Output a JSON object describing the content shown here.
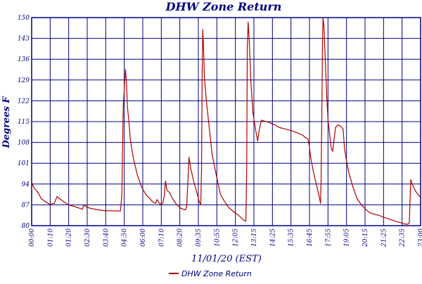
{
  "colors": {
    "title": "#000080",
    "axis_text": "#000080",
    "grid": "#000080",
    "series": "#b00000",
    "background": "#ffffff"
  },
  "chart_data": {
    "type": "line",
    "title": "DHW Zone Return",
    "ylabel": "Degrees F",
    "xlabel": "11/01/20 (EST)",
    "ylim": [
      80,
      150
    ],
    "yticks": [
      "80",
      "87",
      "94",
      "101",
      "108",
      "115",
      "122",
      "129",
      "136",
      "143",
      "150"
    ],
    "xlim": [
      "00:00",
      "23:00"
    ],
    "xticks": [
      "00:00",
      "01:10",
      "01:20",
      "02:30",
      "03:40",
      "04:50",
      "06:00",
      "07:10",
      "08:20",
      "09:35",
      "10:55",
      "12:05",
      "13:15",
      "14:25",
      "15:35",
      "16:45",
      "17:55",
      "19:05",
      "20:15",
      "21:25",
      "22:35",
      "23:00"
    ],
    "grid": true,
    "legend_position": "bottom-left",
    "series": [
      {
        "name": "DHW Zone Return",
        "points": [
          [
            "00:00",
            94.5
          ],
          [
            "00:10",
            92.5
          ],
          [
            "00:20",
            91.5
          ],
          [
            "00:35",
            89.0
          ],
          [
            "00:50",
            88.0
          ],
          [
            "01:05",
            87.2
          ],
          [
            "01:20",
            87.5
          ],
          [
            "01:30",
            89.8
          ],
          [
            "01:40",
            89.0
          ],
          [
            "01:55",
            88.0
          ],
          [
            "02:10",
            87.0
          ],
          [
            "02:30",
            86.5
          ],
          [
            "02:45",
            86.0
          ],
          [
            "03:00",
            85.5
          ],
          [
            "03:05",
            87.0
          ],
          [
            "03:15",
            86.3
          ],
          [
            "03:30",
            85.8
          ],
          [
            "03:45",
            85.5
          ],
          [
            "04:00",
            85.3
          ],
          [
            "04:20",
            85.0
          ],
          [
            "04:45",
            85.0
          ],
          [
            "05:15",
            84.9
          ],
          [
            "05:20",
            90.0
          ],
          [
            "05:25",
            120.0
          ],
          [
            "05:30",
            128.0
          ],
          [
            "05:33",
            132.5
          ],
          [
            "05:36",
            129.0
          ],
          [
            "05:40",
            120.0
          ],
          [
            "05:45",
            115.0
          ],
          [
            "05:50",
            109.0
          ],
          [
            "06:00",
            103.0
          ],
          [
            "06:15",
            97.0
          ],
          [
            "06:30",
            93.0
          ],
          [
            "06:45",
            90.5
          ],
          [
            "07:00",
            89.0
          ],
          [
            "07:10",
            88.0
          ],
          [
            "07:20",
            87.5
          ],
          [
            "07:25",
            88.8
          ],
          [
            "07:35",
            87.2
          ],
          [
            "07:45",
            87.5
          ],
          [
            "07:50",
            89.5
          ],
          [
            "07:55",
            95.0
          ],
          [
            "08:00",
            92.0
          ],
          [
            "08:10",
            91.0
          ],
          [
            "08:20",
            89.0
          ],
          [
            "08:35",
            87.0
          ],
          [
            "08:50",
            85.8
          ],
          [
            "09:05",
            85.3
          ],
          [
            "09:10",
            86.5
          ],
          [
            "09:15",
            96.0
          ],
          [
            "09:18",
            103.0
          ],
          [
            "09:25",
            99.0
          ],
          [
            "09:35",
            95.0
          ],
          [
            "09:45",
            91.5
          ],
          [
            "09:55",
            88.0
          ],
          [
            "10:00",
            87.0
          ],
          [
            "10:03",
            100.0
          ],
          [
            "10:05",
            130.0
          ],
          [
            "10:07",
            146.0
          ],
          [
            "10:10",
            140.0
          ],
          [
            "10:13",
            130.0
          ],
          [
            "10:20",
            122.0
          ],
          [
            "10:30",
            113.0
          ],
          [
            "10:40",
            104.0
          ],
          [
            "10:55",
            97.0
          ],
          [
            "11:10",
            90.5
          ],
          [
            "11:25",
            88.0
          ],
          [
            "11:40",
            86.0
          ],
          [
            "12:00",
            84.5
          ],
          [
            "12:20",
            83.0
          ],
          [
            "12:30",
            82.0
          ],
          [
            "12:40",
            81.5
          ],
          [
            "12:43",
            100.0
          ],
          [
            "12:45",
            140.0
          ],
          [
            "12:48",
            148.5
          ],
          [
            "12:52",
            142.0
          ],
          [
            "12:58",
            128.0
          ],
          [
            "13:05",
            118.0
          ],
          [
            "13:15",
            112.0
          ],
          [
            "13:22",
            108.5
          ],
          [
            "13:27",
            112.0
          ],
          [
            "13:35",
            115.5
          ],
          [
            "13:45",
            115.2
          ],
          [
            "14:00",
            114.8
          ],
          [
            "14:20",
            114.0
          ],
          [
            "14:40",
            113.0
          ],
          [
            "15:00",
            112.5
          ],
          [
            "15:20",
            112.0
          ],
          [
            "15:40",
            111.3
          ],
          [
            "16:00",
            110.5
          ],
          [
            "16:10",
            109.8
          ],
          [
            "16:20",
            109.2
          ],
          [
            "16:25",
            107.0
          ],
          [
            "16:30",
            103.0
          ],
          [
            "16:40",
            98.0
          ],
          [
            "16:50",
            94.0
          ],
          [
            "17:00",
            90.0
          ],
          [
            "17:05",
            87.5
          ],
          [
            "17:07",
            95.0
          ],
          [
            "17:10",
            120.0
          ],
          [
            "17:12",
            142.0
          ],
          [
            "17:14",
            150.0
          ],
          [
            "17:17",
            147.0
          ],
          [
            "17:22",
            135.0
          ],
          [
            "17:27",
            123.0
          ],
          [
            "17:32",
            115.0
          ],
          [
            "17:38",
            110.0
          ],
          [
            "17:43",
            106.0
          ],
          [
            "17:48",
            105.0
          ],
          [
            "17:53",
            109.0
          ],
          [
            "17:58",
            113.0
          ],
          [
            "18:05",
            113.8
          ],
          [
            "18:15",
            113.6
          ],
          [
            "18:25",
            112.5
          ],
          [
            "18:30",
            106.0
          ],
          [
            "18:35",
            103.0
          ],
          [
            "18:45",
            98.0
          ],
          [
            "19:00",
            93.0
          ],
          [
            "19:15",
            89.0
          ],
          [
            "19:30",
            87.0
          ],
          [
            "19:45",
            85.5
          ],
          [
            "20:00",
            84.3
          ],
          [
            "20:30",
            83.5
          ],
          [
            "21:00",
            82.5
          ],
          [
            "21:30",
            81.5
          ],
          [
            "21:50",
            81.0
          ],
          [
            "22:05",
            80.5
          ],
          [
            "22:15",
            80.5
          ],
          [
            "22:20",
            81.0
          ],
          [
            "22:23",
            90.0
          ],
          [
            "22:25",
            95.5
          ],
          [
            "22:30",
            94.0
          ],
          [
            "22:40",
            92.0
          ],
          [
            "22:50",
            90.5
          ],
          [
            "23:00",
            89.5
          ]
        ]
      }
    ]
  }
}
